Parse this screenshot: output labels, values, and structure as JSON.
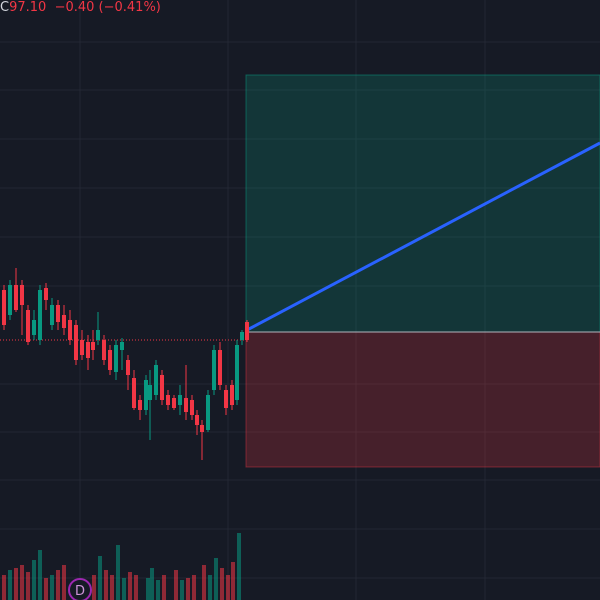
{
  "header": {
    "close_label": "C",
    "close": "97.10",
    "change": "−0.40",
    "change_percent": "(−0.41%)"
  },
  "badge": "D"
}
